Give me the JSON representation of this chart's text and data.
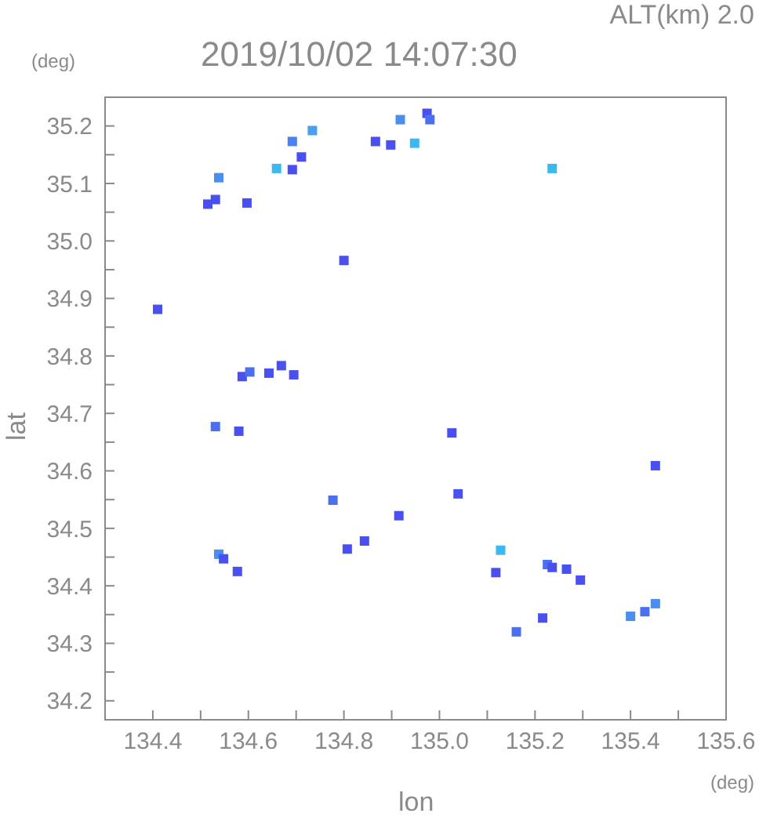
{
  "chart_data": {
    "type": "scatter",
    "title": "2019/10/02 14:07:30",
    "subtitle": "ALT(km)  2.0",
    "xlabel": "lon",
    "ylabel": "lat",
    "annotations": [
      "(deg)",
      "(deg)"
    ],
    "xlim": [
      134.3,
      135.6
    ],
    "ylim": [
      34.167,
      35.25
    ],
    "xticks": [
      {
        "value": 134.3,
        "label": null
      },
      134.4,
      {
        "value": 134.5,
        "label": null
      },
      134.6,
      {
        "value": 134.7,
        "label": null
      },
      134.8,
      {
        "value": 134.9,
        "label": null
      },
      {
        "value": 135.0,
        "label": "135.0"
      },
      {
        "value": 135.1,
        "label": null
      },
      135.2,
      {
        "value": 135.3,
        "label": null
      },
      135.4,
      {
        "value": 135.5,
        "label": null
      },
      135.6
    ],
    "yticks": [
      34.2,
      {
        "value": 34.25,
        "label": null
      },
      34.3,
      {
        "value": 34.35,
        "label": null
      },
      34.4,
      {
        "value": 34.45,
        "label": null
      },
      34.5,
      {
        "value": 34.55,
        "label": null
      },
      34.6,
      {
        "value": 34.65,
        "label": null
      },
      34.7,
      {
        "value": 34.75,
        "label": null
      },
      34.8,
      {
        "value": 34.85,
        "label": null
      },
      34.9,
      {
        "value": 34.95,
        "label": null
      },
      {
        "value": 35.0,
        "label": "35.0"
      },
      {
        "value": 35.05,
        "label": null
      },
      35.1,
      {
        "value": 35.15,
        "label": null
      },
      35.2
    ],
    "marker": "square",
    "grid": false,
    "legend": false,
    "x": [
      134.538,
      134.531,
      134.515,
      134.597,
      134.659,
      134.692,
      134.734,
      134.711,
      134.692,
      134.866,
      134.8,
      134.41,
      134.587,
      134.603,
      134.643,
      134.695,
      134.669,
      134.918,
      134.974,
      134.98,
      134.898,
      134.948,
      135.236,
      134.531,
      134.58,
      134.777,
      134.807,
      134.843,
      134.538,
      134.548,
      134.577,
      135.026,
      135.039,
      134.915,
      135.128,
      135.118,
      135.226,
      135.236,
      135.266,
      135.295,
      135.216,
      135.161,
      135.4,
      135.43,
      135.452,
      135.452
    ],
    "values": [
      35.11,
      35.072,
      35.064,
      35.066,
      35.126,
      35.173,
      35.192,
      35.146,
      35.124,
      35.173,
      34.966,
      34.881,
      34.764,
      34.772,
      34.77,
      34.767,
      34.783,
      35.211,
      35.222,
      35.211,
      35.167,
      35.17,
      35.126,
      34.677,
      34.669,
      34.549,
      34.464,
      34.478,
      34.455,
      34.447,
      34.425,
      34.666,
      34.56,
      34.522,
      34.462,
      34.423,
      34.437,
      34.432,
      34.429,
      34.41,
      34.344,
      34.32,
      34.347,
      34.355,
      34.369,
      34.609
    ],
    "colors": [
      "#4a8ef0",
      "#4a50f0",
      "#4a50f0",
      "#4a50f0",
      "#3cb8f0",
      "#4a80f0",
      "#4aa0f0",
      "#4a50f0",
      "#4a50f0",
      "#4a50f0",
      "#4a50f0",
      "#4a50f0",
      "#4a50f0",
      "#4a70f0",
      "#4a50f0",
      "#4a50f0",
      "#4a50f0",
      "#4a8ef0",
      "#4a50f0",
      "#4a70f0",
      "#4a50f0",
      "#3cb8f0",
      "#3cb8f0",
      "#4a70f0",
      "#4a50f0",
      "#4a70f0",
      "#4a50f0",
      "#4a50f0",
      "#4a8ef0",
      "#4a50f0",
      "#4a50f0",
      "#4a50f0",
      "#4a50f0",
      "#4a50f0",
      "#3cb8f0",
      "#4a50f0",
      "#4a70f0",
      "#4a50f0",
      "#4a50f0",
      "#4a50f0",
      "#4a50f0",
      "#4a70f0",
      "#4a8ef0",
      "#4a70f0",
      "#4a8ef0",
      "#4a50f0"
    ]
  }
}
